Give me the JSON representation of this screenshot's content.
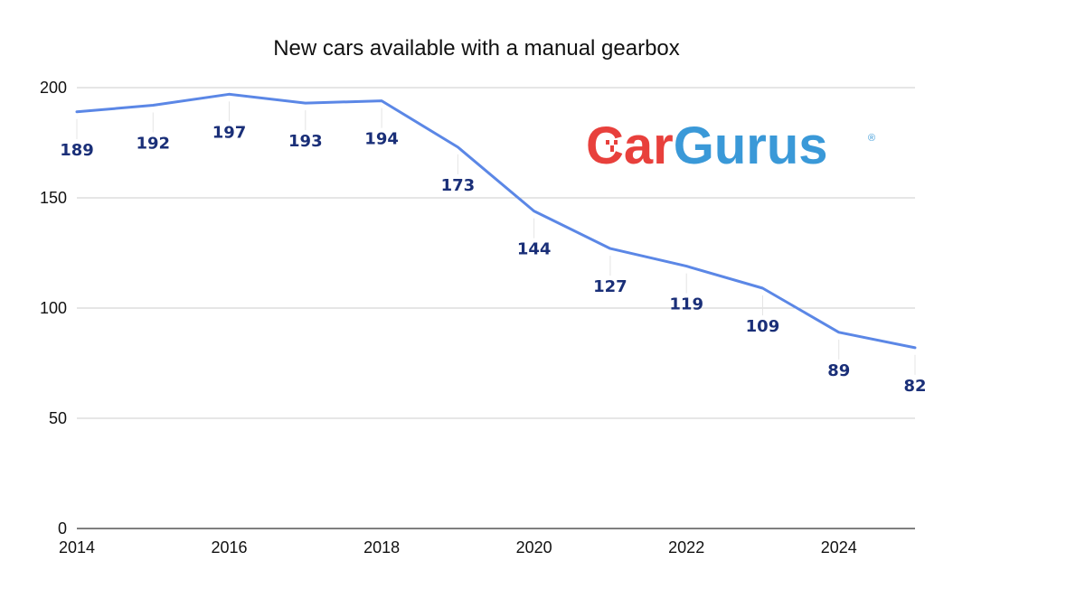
{
  "chart_data": {
    "type": "line",
    "title": "New cars available with a manual gearbox",
    "xlabel": "",
    "ylabel": "",
    "x": [
      2014,
      2015,
      2016,
      2017,
      2018,
      2019,
      2020,
      2021,
      2022,
      2023,
      2024,
      2025
    ],
    "series": [
      {
        "values": [
          189,
          192,
          197,
          193,
          194,
          173,
          144,
          127,
          119,
          109,
          89,
          82
        ]
      }
    ],
    "xlim": [
      2014,
      2025
    ],
    "ylim": [
      0,
      200
    ],
    "x_ticks": [
      "2014",
      "2016",
      "2018",
      "2020",
      "2022",
      "2024"
    ],
    "y_ticks": [
      "0",
      "50",
      "100",
      "150",
      "200"
    ],
    "grid": true,
    "line_color": "#5b87e6",
    "label_color": "#1a2f78"
  },
  "logo": {
    "part1": "Car",
    "part2": "Gurus",
    "mark": "®",
    "color1": "#e8403c",
    "color2": "#3a99d8"
  }
}
